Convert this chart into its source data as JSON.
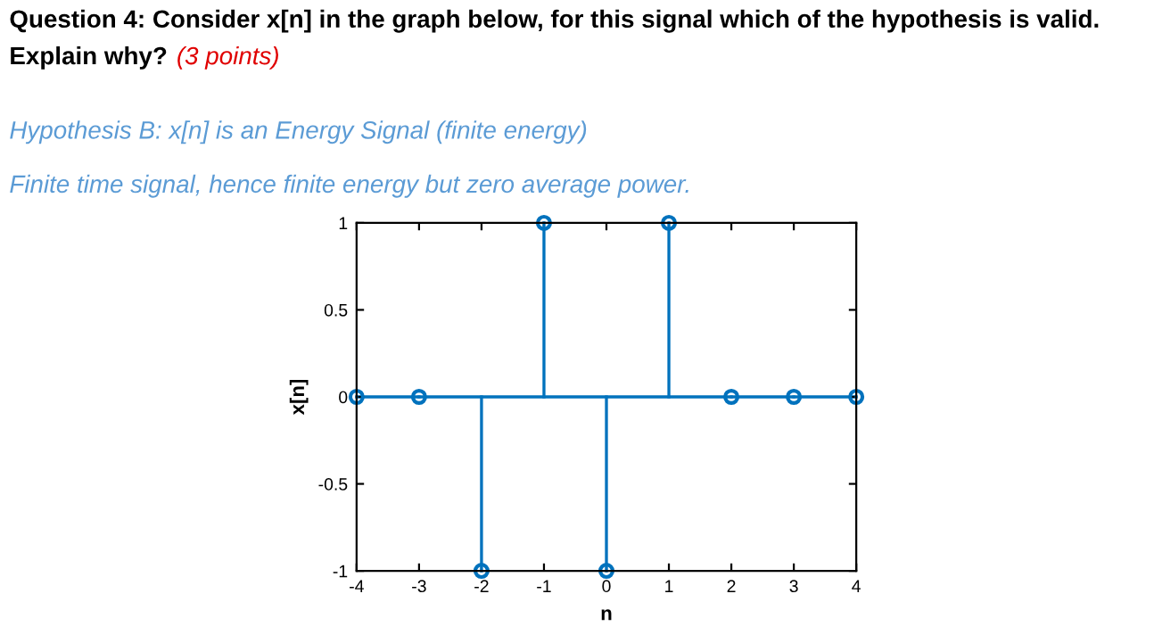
{
  "chart_data": {
    "type": "lollipop",
    "title": "Question 4: Consider x[n] in the graph below, for this signal which of the hypothesis is valid. Explain why?",
    "subtitle": "(3 points)",
    "annotations": [
      "Hypothesis B: x[n] is an Energy Signal (finite energy)",
      "Finite time signal, hence finite energy but zero average power."
    ],
    "xlabel": "n",
    "ylabel": "x[n]",
    "x": [
      -4,
      -3,
      -2,
      -1,
      0,
      1,
      2,
      3,
      4
    ],
    "series": [
      {
        "color": "#0072bd",
        "values": [
          0,
          0,
          -1,
          1,
          -1,
          1,
          0,
          0,
          0
        ]
      }
    ],
    "xlim": [
      -4,
      4
    ],
    "ylim": [
      -1,
      1
    ],
    "xticks": [
      -4,
      -3,
      -2,
      -1,
      0,
      1,
      2,
      3,
      4
    ],
    "yticks": [
      -1,
      -0.5,
      0,
      0.5,
      1
    ],
    "ref_lines": [
      {
        "axis": "y",
        "value": 0,
        "color": "#0072bd"
      }
    ],
    "marker": "circle",
    "grid": false,
    "legend": false
  }
}
